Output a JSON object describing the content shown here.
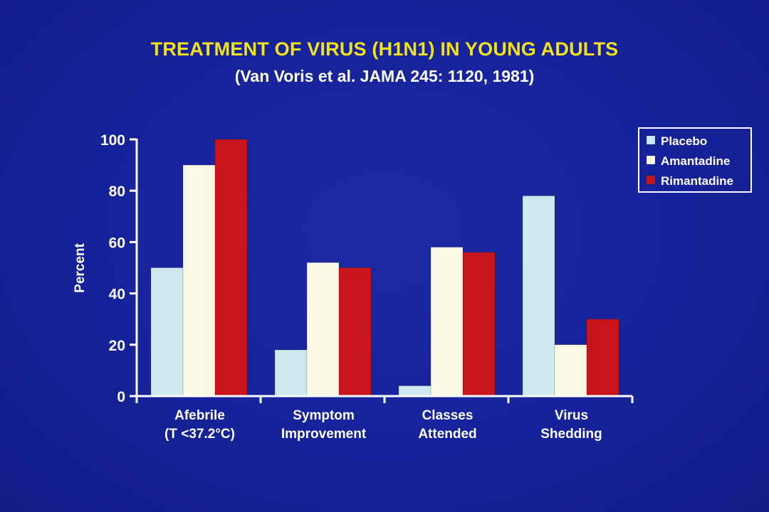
{
  "slide": {
    "title": "TREATMENT OF VIRUS (H1N1) IN YOUNG ADULTS",
    "subtitle": "(Van Voris et al. JAMA 245: 1120, 1981)"
  },
  "chart_data": {
    "type": "bar",
    "categories": [
      [
        "Afebrile",
        "(T <37.2°C)"
      ],
      [
        "Symptom",
        "Improvement"
      ],
      [
        "Classes",
        "Attended"
      ],
      [
        "Virus",
        "Shedding"
      ]
    ],
    "series": [
      {
        "name": "Placebo",
        "values": [
          50,
          18,
          4,
          78
        ],
        "color": "#cde8ee"
      },
      {
        "name": "Amantadine",
        "values": [
          90,
          52,
          58,
          20
        ],
        "color": "#fbf8e3"
      },
      {
        "name": "Rimantadine",
        "values": [
          100,
          50,
          56,
          30
        ],
        "color": "#c8141c"
      }
    ],
    "ylabel": "Percent",
    "xlabel": "",
    "ylim": [
      0,
      100
    ],
    "yticks": [
      0,
      20,
      40,
      60,
      80,
      100
    ],
    "grid": false,
    "legend_position": "top-right"
  }
}
